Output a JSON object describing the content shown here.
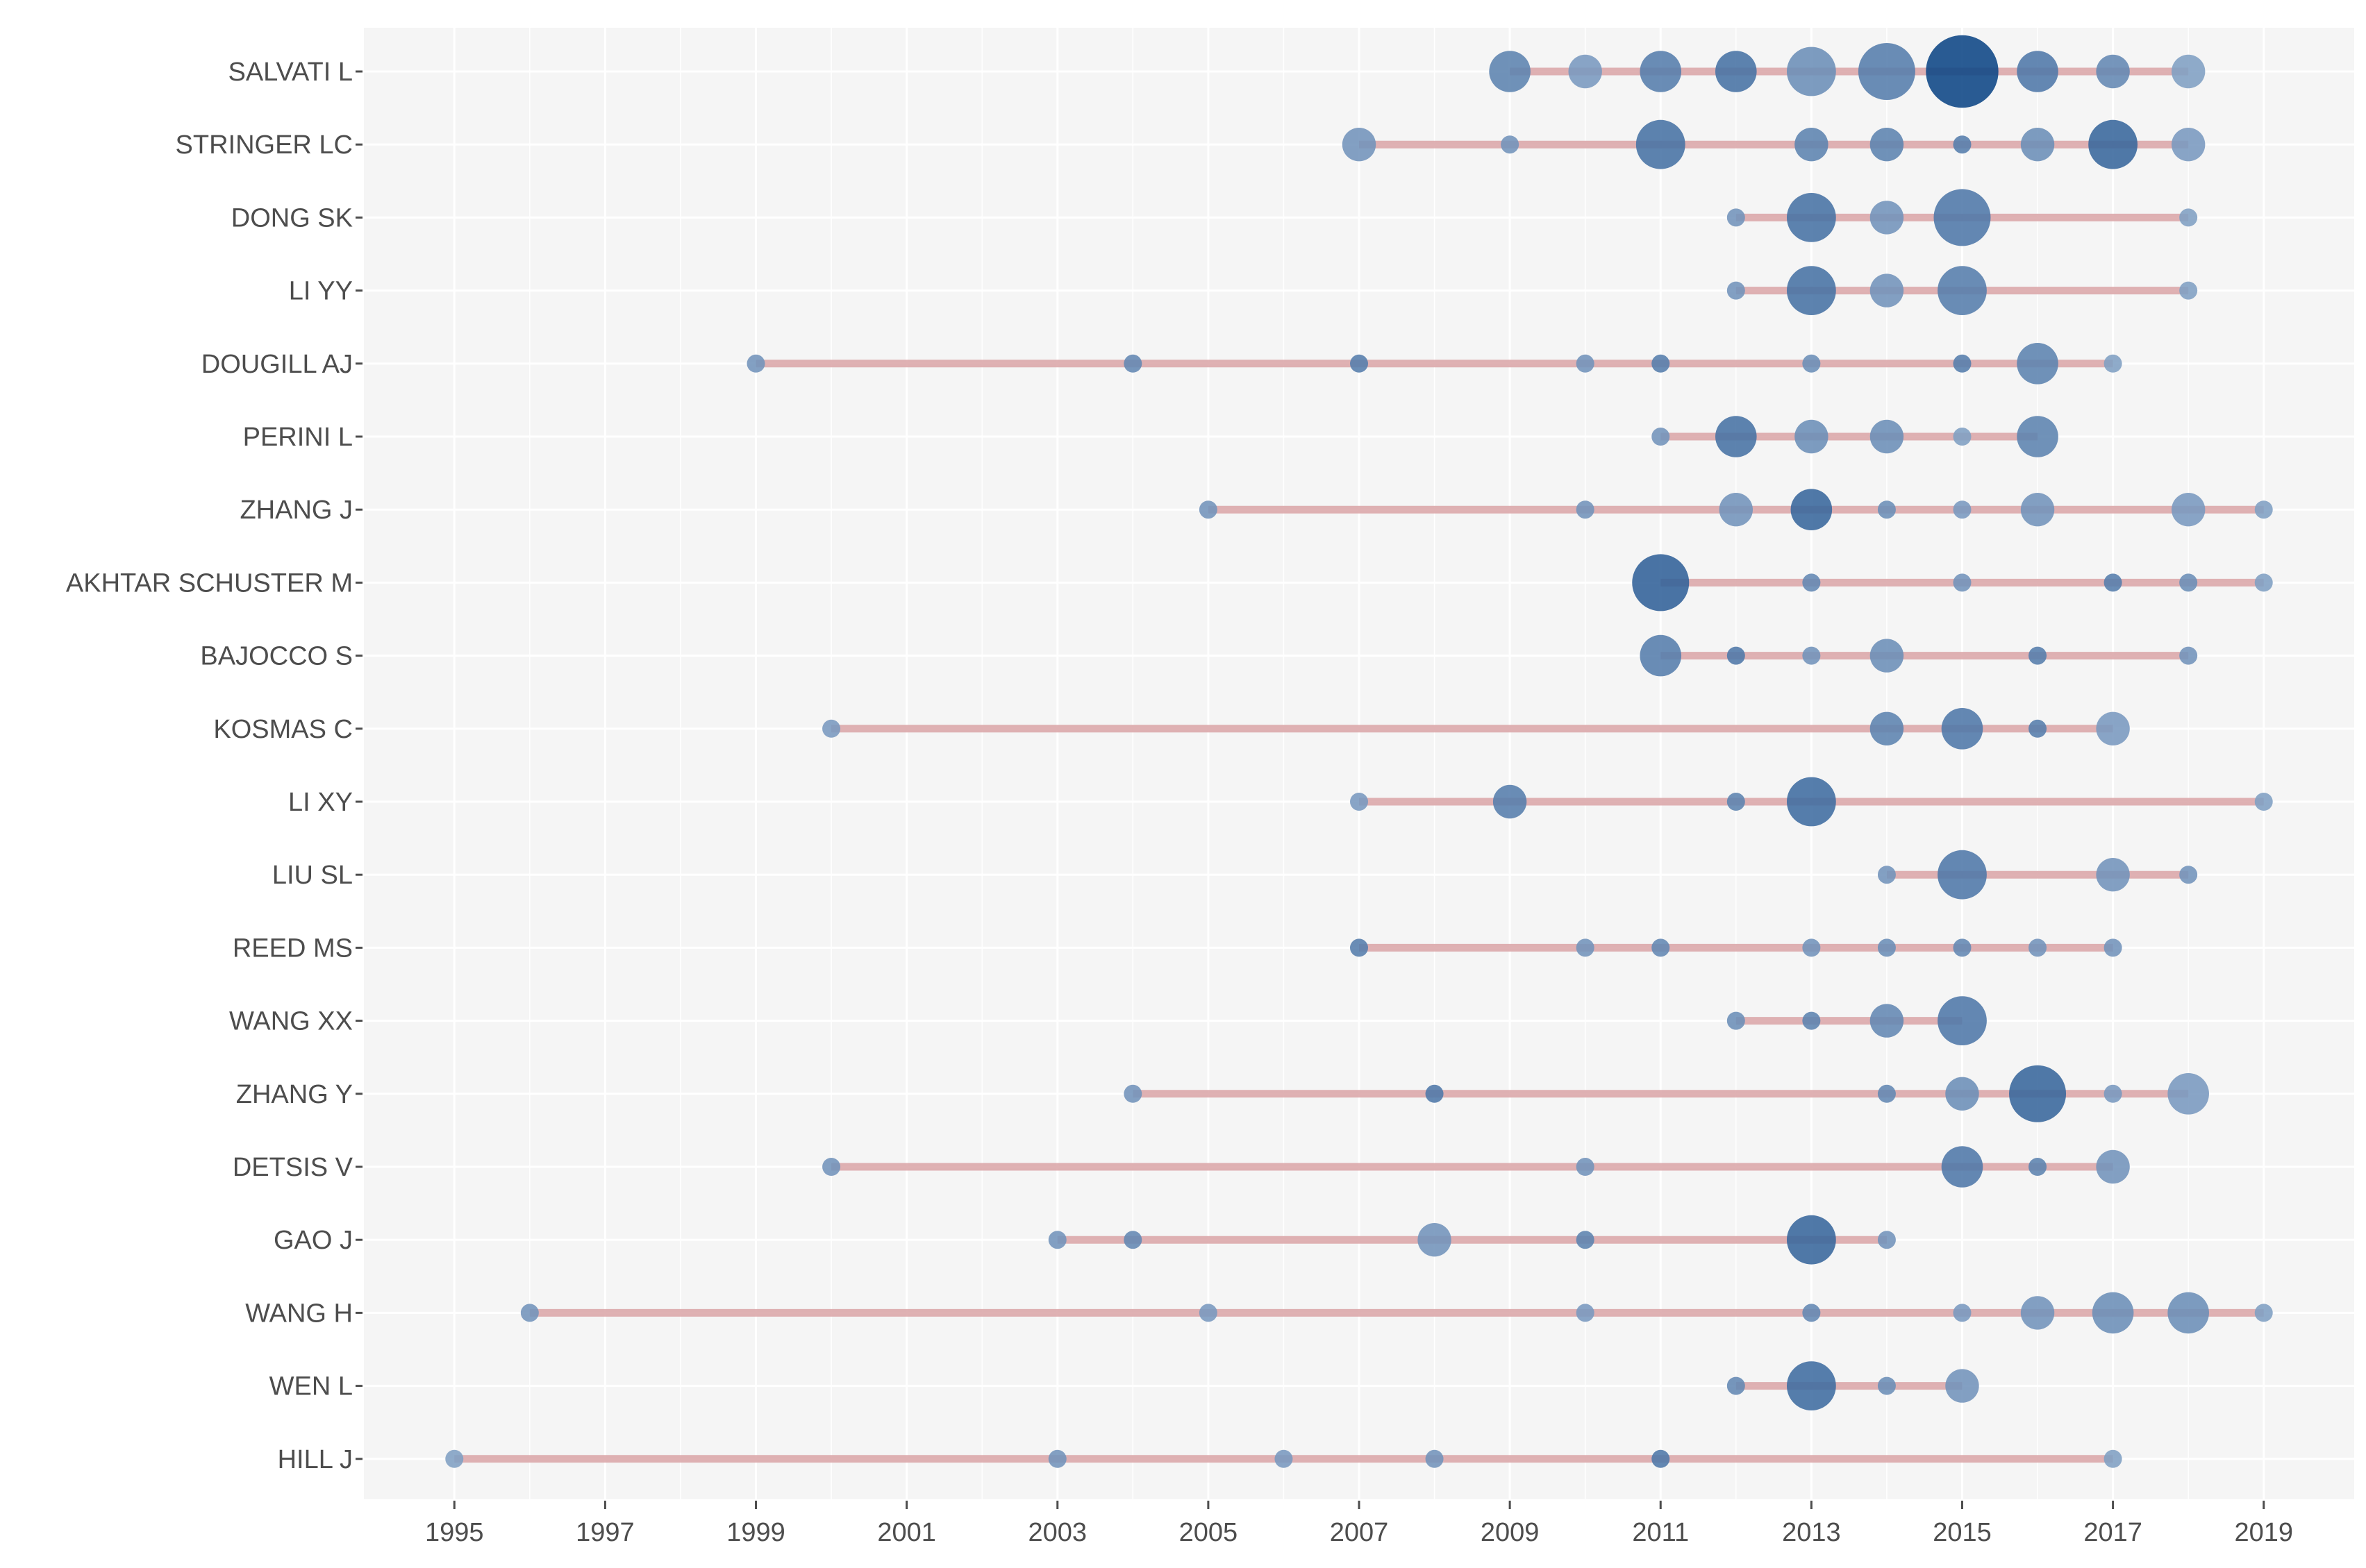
{
  "chart_data": {
    "type": "timeline-bubble",
    "title": "",
    "xlabel": "",
    "ylabel": "",
    "xlim": [
      1993.8,
      2020.2
    ],
    "x_ticks": [
      1995,
      1997,
      1999,
      2001,
      2003,
      2005,
      2007,
      2009,
      2011,
      2013,
      2015,
      2017,
      2019
    ],
    "grid": true,
    "colors": {
      "panel": "#f5f5f5",
      "grid": "#ffffff",
      "line": "#d9a3a6",
      "point_low": "#9db5d2",
      "point_high": "#0d4585",
      "tick_text": "#4d4d4d"
    },
    "series": [
      {
        "author": "SALVATI L",
        "start": 2009,
        "end": 2018,
        "points": [
          {
            "year": 2009,
            "size": 5,
            "intensity": 0.45
          },
          {
            "year": 2010,
            "size": 4,
            "intensity": 0.25
          },
          {
            "year": 2011,
            "size": 5,
            "intensity": 0.5
          },
          {
            "year": 2012,
            "size": 5,
            "intensity": 0.6
          },
          {
            "year": 2013,
            "size": 6,
            "intensity": 0.35
          },
          {
            "year": 2014,
            "size": 7,
            "intensity": 0.5
          },
          {
            "year": 2015,
            "size": 9,
            "intensity": 1.0
          },
          {
            "year": 2016,
            "size": 5,
            "intensity": 0.55
          },
          {
            "year": 2017,
            "size": 4,
            "intensity": 0.4
          },
          {
            "year": 2018,
            "size": 4,
            "intensity": 0.2
          }
        ]
      },
      {
        "author": "STRINGER LC",
        "start": 2007,
        "end": 2018,
        "points": [
          {
            "year": 2007,
            "size": 4,
            "intensity": 0.3
          },
          {
            "year": 2009,
            "size": 2,
            "intensity": 0.3
          },
          {
            "year": 2011,
            "size": 6,
            "intensity": 0.6
          },
          {
            "year": 2013,
            "size": 4,
            "intensity": 0.45
          },
          {
            "year": 2014,
            "size": 4,
            "intensity": 0.45
          },
          {
            "year": 2015,
            "size": 2,
            "intensity": 0.5
          },
          {
            "year": 2016,
            "size": 4,
            "intensity": 0.35
          },
          {
            "year": 2017,
            "size": 6,
            "intensity": 0.7
          },
          {
            "year": 2018,
            "size": 4,
            "intensity": 0.25
          }
        ]
      },
      {
        "author": "DONG SK",
        "start": 2012,
        "end": 2018,
        "points": [
          {
            "year": 2012,
            "size": 2,
            "intensity": 0.3
          },
          {
            "year": 2013,
            "size": 6,
            "intensity": 0.6
          },
          {
            "year": 2014,
            "size": 4,
            "intensity": 0.3
          },
          {
            "year": 2015,
            "size": 7,
            "intensity": 0.55
          },
          {
            "year": 2018,
            "size": 2,
            "intensity": 0.2
          }
        ]
      },
      {
        "author": "LI YY",
        "start": 2012,
        "end": 2018,
        "points": [
          {
            "year": 2012,
            "size": 2,
            "intensity": 0.3
          },
          {
            "year": 2013,
            "size": 6,
            "intensity": 0.6
          },
          {
            "year": 2014,
            "size": 4,
            "intensity": 0.3
          },
          {
            "year": 2015,
            "size": 6,
            "intensity": 0.5
          },
          {
            "year": 2018,
            "size": 2,
            "intensity": 0.2
          }
        ]
      },
      {
        "author": "DOUGILL AJ",
        "start": 1999,
        "end": 2017,
        "points": [
          {
            "year": 1999,
            "size": 2,
            "intensity": 0.3
          },
          {
            "year": 2004,
            "size": 2,
            "intensity": 0.4
          },
          {
            "year": 2007,
            "size": 2,
            "intensity": 0.5
          },
          {
            "year": 2010,
            "size": 2,
            "intensity": 0.3
          },
          {
            "year": 2011,
            "size": 2,
            "intensity": 0.5
          },
          {
            "year": 2013,
            "size": 2,
            "intensity": 0.35
          },
          {
            "year": 2015,
            "size": 2,
            "intensity": 0.5
          },
          {
            "year": 2016,
            "size": 5,
            "intensity": 0.45
          },
          {
            "year": 2017,
            "size": 2,
            "intensity": 0.2
          }
        ]
      },
      {
        "author": "PERINI L",
        "start": 2011,
        "end": 2016,
        "points": [
          {
            "year": 2011,
            "size": 2,
            "intensity": 0.3
          },
          {
            "year": 2012,
            "size": 5,
            "intensity": 0.6
          },
          {
            "year": 2013,
            "size": 4,
            "intensity": 0.35
          },
          {
            "year": 2014,
            "size": 4,
            "intensity": 0.35
          },
          {
            "year": 2015,
            "size": 2,
            "intensity": 0.2
          },
          {
            "year": 2016,
            "size": 5,
            "intensity": 0.45
          }
        ]
      },
      {
        "author": "ZHANG J",
        "start": 2005,
        "end": 2019,
        "points": [
          {
            "year": 2005,
            "size": 2,
            "intensity": 0.3
          },
          {
            "year": 2010,
            "size": 2,
            "intensity": 0.3
          },
          {
            "year": 2012,
            "size": 4,
            "intensity": 0.3
          },
          {
            "year": 2013,
            "size": 5,
            "intensity": 0.7
          },
          {
            "year": 2014,
            "size": 2,
            "intensity": 0.35
          },
          {
            "year": 2015,
            "size": 2,
            "intensity": 0.25
          },
          {
            "year": 2016,
            "size": 4,
            "intensity": 0.3
          },
          {
            "year": 2018,
            "size": 4,
            "intensity": 0.25
          },
          {
            "year": 2019,
            "size": 2,
            "intensity": 0.2
          }
        ]
      },
      {
        "author": "AKHTAR SCHUSTER M",
        "start": 2011,
        "end": 2019,
        "points": [
          {
            "year": 2011,
            "size": 7,
            "intensity": 0.75
          },
          {
            "year": 2013,
            "size": 2,
            "intensity": 0.4
          },
          {
            "year": 2015,
            "size": 2,
            "intensity": 0.3
          },
          {
            "year": 2017,
            "size": 2,
            "intensity": 0.5
          },
          {
            "year": 2018,
            "size": 2,
            "intensity": 0.35
          },
          {
            "year": 2019,
            "size": 2,
            "intensity": 0.2
          }
        ]
      },
      {
        "author": "BAJOCCO S",
        "start": 2011,
        "end": 2018,
        "points": [
          {
            "year": 2011,
            "size": 5,
            "intensity": 0.5
          },
          {
            "year": 2012,
            "size": 2,
            "intensity": 0.55
          },
          {
            "year": 2013,
            "size": 2,
            "intensity": 0.3
          },
          {
            "year": 2014,
            "size": 4,
            "intensity": 0.35
          },
          {
            "year": 2016,
            "size": 2,
            "intensity": 0.5
          },
          {
            "year": 2018,
            "size": 2,
            "intensity": 0.3
          }
        ]
      },
      {
        "author": "KOSMAS C",
        "start": 2000,
        "end": 2017,
        "points": [
          {
            "year": 2000,
            "size": 2,
            "intensity": 0.25
          },
          {
            "year": 2014,
            "size": 4,
            "intensity": 0.45
          },
          {
            "year": 2015,
            "size": 5,
            "intensity": 0.55
          },
          {
            "year": 2016,
            "size": 2,
            "intensity": 0.5
          },
          {
            "year": 2017,
            "size": 4,
            "intensity": 0.25
          }
        ]
      },
      {
        "author": "LI XY",
        "start": 2007,
        "end": 2019,
        "points": [
          {
            "year": 2007,
            "size": 2,
            "intensity": 0.25
          },
          {
            "year": 2009,
            "size": 4,
            "intensity": 0.5
          },
          {
            "year": 2012,
            "size": 2,
            "intensity": 0.45
          },
          {
            "year": 2013,
            "size": 6,
            "intensity": 0.65
          },
          {
            "year": 2019,
            "size": 2,
            "intensity": 0.2
          }
        ]
      },
      {
        "author": "LIU SL",
        "start": 2014,
        "end": 2018,
        "points": [
          {
            "year": 2014,
            "size": 2,
            "intensity": 0.3
          },
          {
            "year": 2015,
            "size": 6,
            "intensity": 0.55
          },
          {
            "year": 2017,
            "size": 4,
            "intensity": 0.3
          },
          {
            "year": 2018,
            "size": 2,
            "intensity": 0.3
          }
        ]
      },
      {
        "author": "REED MS",
        "start": 2007,
        "end": 2017,
        "points": [
          {
            "year": 2007,
            "size": 2,
            "intensity": 0.5
          },
          {
            "year": 2010,
            "size": 2,
            "intensity": 0.3
          },
          {
            "year": 2011,
            "size": 2,
            "intensity": 0.4
          },
          {
            "year": 2013,
            "size": 2,
            "intensity": 0.3
          },
          {
            "year": 2014,
            "size": 2,
            "intensity": 0.35
          },
          {
            "year": 2015,
            "size": 2,
            "intensity": 0.4
          },
          {
            "year": 2016,
            "size": 2,
            "intensity": 0.3
          },
          {
            "year": 2017,
            "size": 2,
            "intensity": 0.3
          }
        ]
      },
      {
        "author": "WANG XX",
        "start": 2012,
        "end": 2015,
        "points": [
          {
            "year": 2012,
            "size": 2,
            "intensity": 0.35
          },
          {
            "year": 2013,
            "size": 2,
            "intensity": 0.45
          },
          {
            "year": 2014,
            "size": 4,
            "intensity": 0.4
          },
          {
            "year": 2015,
            "size": 6,
            "intensity": 0.55
          }
        ]
      },
      {
        "author": "ZHANG Y",
        "start": 2004,
        "end": 2018,
        "points": [
          {
            "year": 2004,
            "size": 2,
            "intensity": 0.3
          },
          {
            "year": 2008,
            "size": 2,
            "intensity": 0.55
          },
          {
            "year": 2014,
            "size": 2,
            "intensity": 0.4
          },
          {
            "year": 2015,
            "size": 4,
            "intensity": 0.35
          },
          {
            "year": 2016,
            "size": 7,
            "intensity": 0.7
          },
          {
            "year": 2017,
            "size": 2,
            "intensity": 0.25
          },
          {
            "year": 2018,
            "size": 5,
            "intensity": 0.25
          }
        ]
      },
      {
        "author": "DETSIS V",
        "start": 2000,
        "end": 2017,
        "points": [
          {
            "year": 2000,
            "size": 2,
            "intensity": 0.3
          },
          {
            "year": 2010,
            "size": 2,
            "intensity": 0.3
          },
          {
            "year": 2015,
            "size": 5,
            "intensity": 0.55
          },
          {
            "year": 2016,
            "size": 2,
            "intensity": 0.45
          },
          {
            "year": 2017,
            "size": 4,
            "intensity": 0.3
          }
        ]
      },
      {
        "author": "GAO J",
        "start": 2003,
        "end": 2014,
        "points": [
          {
            "year": 2003,
            "size": 2,
            "intensity": 0.3
          },
          {
            "year": 2004,
            "size": 2,
            "intensity": 0.4
          },
          {
            "year": 2008,
            "size": 4,
            "intensity": 0.3
          },
          {
            "year": 2010,
            "size": 2,
            "intensity": 0.45
          },
          {
            "year": 2013,
            "size": 6,
            "intensity": 0.7
          },
          {
            "year": 2014,
            "size": 2,
            "intensity": 0.3
          }
        ]
      },
      {
        "author": "WANG H",
        "start": 1996,
        "end": 2019,
        "points": [
          {
            "year": 1996,
            "size": 2,
            "intensity": 0.3
          },
          {
            "year": 2005,
            "size": 2,
            "intensity": 0.25
          },
          {
            "year": 2010,
            "size": 2,
            "intensity": 0.25
          },
          {
            "year": 2013,
            "size": 2,
            "intensity": 0.4
          },
          {
            "year": 2015,
            "size": 2,
            "intensity": 0.25
          },
          {
            "year": 2016,
            "size": 4,
            "intensity": 0.3
          },
          {
            "year": 2017,
            "size": 5,
            "intensity": 0.35
          },
          {
            "year": 2018,
            "size": 5,
            "intensity": 0.35
          },
          {
            "year": 2019,
            "size": 2,
            "intensity": 0.2
          }
        ]
      },
      {
        "author": "WEN L",
        "start": 2012,
        "end": 2015,
        "points": [
          {
            "year": 2012,
            "size": 2,
            "intensity": 0.4
          },
          {
            "year": 2013,
            "size": 6,
            "intensity": 0.65
          },
          {
            "year": 2014,
            "size": 2,
            "intensity": 0.35
          },
          {
            "year": 2015,
            "size": 4,
            "intensity": 0.3
          }
        ]
      },
      {
        "author": "HILL J",
        "start": 1995,
        "end": 2017,
        "points": [
          {
            "year": 1995,
            "size": 2,
            "intensity": 0.2
          },
          {
            "year": 2003,
            "size": 2,
            "intensity": 0.3
          },
          {
            "year": 2006,
            "size": 2,
            "intensity": 0.25
          },
          {
            "year": 2008,
            "size": 2,
            "intensity": 0.3
          },
          {
            "year": 2011,
            "size": 2,
            "intensity": 0.55
          },
          {
            "year": 2017,
            "size": 2,
            "intensity": 0.2
          }
        ]
      }
    ]
  }
}
